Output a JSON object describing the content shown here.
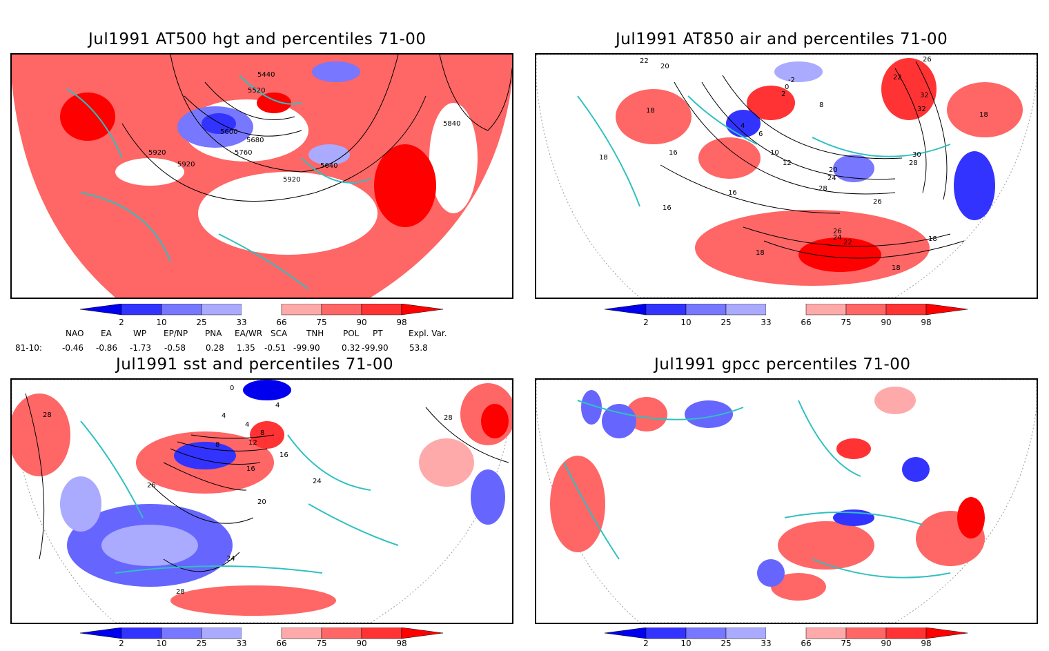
{
  "panels": {
    "p1": {
      "title": "Jul1991 AT500 hgt and percentiles 71-00",
      "labels": [
        "5440",
        "5520",
        "5600",
        "5680",
        "5760",
        "5840",
        "5920",
        "5920",
        "5920",
        "5640"
      ]
    },
    "p2": {
      "title": "Jul1991 AT850 air and percentiles 71-00",
      "labels": [
        "22",
        "20",
        "-2",
        "0",
        "2",
        "4",
        "6",
        "8",
        "10",
        "12",
        "16",
        "16",
        "16",
        "18",
        "18",
        "18",
        "18",
        "20",
        "22",
        "22",
        "24",
        "24",
        "26",
        "26",
        "28",
        "28",
        "30",
        "32",
        "32",
        "26",
        "18",
        "18"
      ]
    },
    "p3": {
      "title": "Jul1991 sst and percentiles 71-00",
      "labels": [
        "28",
        "28",
        "26",
        "24",
        "24",
        "20",
        "16",
        "16",
        "12",
        "8",
        "4",
        "4",
        "8",
        "0",
        "4",
        "28"
      ]
    },
    "p4": {
      "title": "Jul1991 gpcc percentiles 71-00",
      "labels": []
    }
  },
  "colorbar": {
    "ticks": [
      "2",
      "10",
      "25",
      "33",
      "66",
      "75",
      "90",
      "98"
    ],
    "colors": [
      "#0000ee",
      "#3333ff",
      "#7777ff",
      "#aaaaff",
      "#ffffff",
      "#ffaaaa",
      "#ff6666",
      "#ff3333",
      "#ff0000"
    ]
  },
  "indices": {
    "row_label": "81-10:",
    "headers": [
      "NAO",
      "EA",
      "WP",
      "EP/NP",
      "PNA",
      "EA/WR",
      "SCA",
      "TNH",
      "POL",
      "PT",
      "Expl. Var."
    ],
    "values": [
      "-0.46",
      "-0.86",
      "-1.73",
      "-0.58",
      "0.28",
      "1.35",
      "-0.51",
      "-99.90",
      "0.32",
      "-99.90",
      "53.8"
    ]
  },
  "colors": {
    "coast": "#30c0c0",
    "contour": "#000000",
    "red": "#ff6666",
    "blue": "#6666ff"
  }
}
